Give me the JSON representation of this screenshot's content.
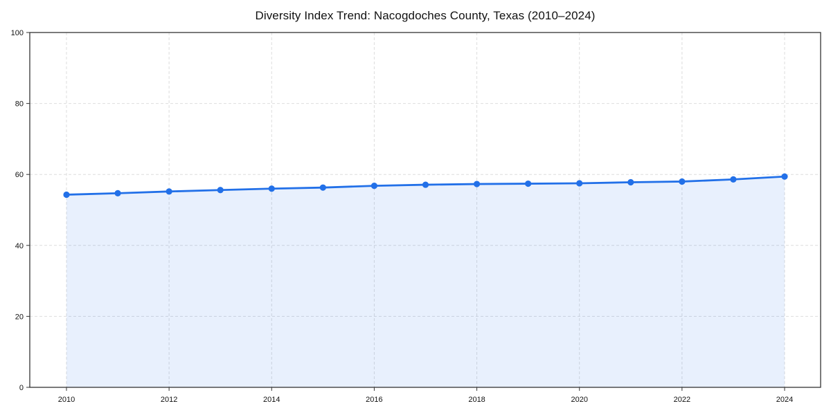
{
  "chart_data": {
    "type": "line",
    "title": "Diversity Index Trend: Nacogdoches County, Texas (2010–2024)",
    "x": [
      2010,
      2011,
      2012,
      2013,
      2014,
      2015,
      2016,
      2017,
      2018,
      2019,
      2020,
      2021,
      2022,
      2023,
      2024
    ],
    "series": [
      {
        "name": "Diversity Index",
        "values": [
          54.3,
          54.7,
          55.2,
          55.6,
          56.0,
          56.3,
          56.8,
          57.1,
          57.3,
          57.4,
          57.5,
          57.8,
          58.0,
          58.6,
          59.4
        ]
      }
    ],
    "xticks": [
      2010,
      2012,
      2014,
      2016,
      2018,
      2020,
      2022,
      2024
    ],
    "yticks": [
      0,
      20,
      40,
      60,
      80,
      100
    ],
    "ylim": [
      0,
      100
    ],
    "xlabel": "",
    "ylabel": "",
    "grid": true,
    "legend": "none",
    "line_color": "#2270e8",
    "marker_color": "#2270e8",
    "area_fill": true,
    "area_opacity": 0.1,
    "gridline_color": "#dddddd",
    "axis_color": "#333333",
    "tick_label_color": "#111111"
  }
}
